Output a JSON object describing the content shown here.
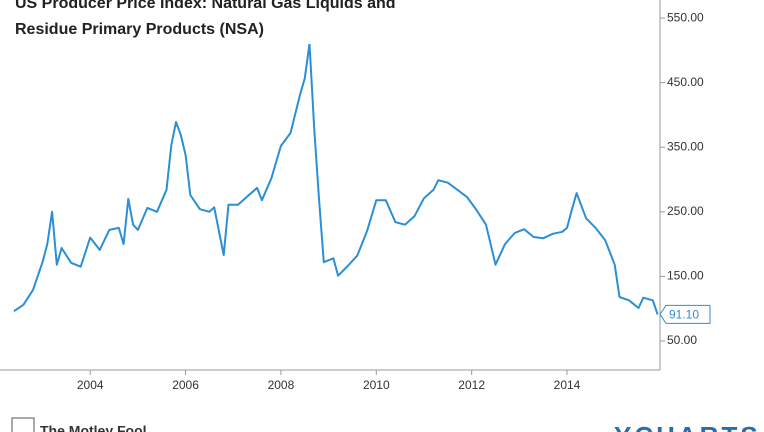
{
  "chart_data": {
    "type": "line",
    "title_lines": [
      "US Producer Price Index: Natural Gas Liquids and",
      "Residue Primary Products (NSA)"
    ],
    "x": [
      2002.4,
      2002.6,
      2002.8,
      2003.0,
      2003.1,
      2003.2,
      2003.3,
      2003.4,
      2003.6,
      2003.8,
      2004.0,
      2004.2,
      2004.4,
      2004.6,
      2004.7,
      2004.8,
      2004.9,
      2005.0,
      2005.2,
      2005.4,
      2005.6,
      2005.7,
      2005.8,
      2005.9,
      2006.0,
      2006.1,
      2006.3,
      2006.5,
      2006.6,
      2006.8,
      2006.9,
      2007.1,
      2007.3,
      2007.5,
      2007.6,
      2007.8,
      2008.0,
      2008.2,
      2008.4,
      2008.5,
      2008.6,
      2008.7,
      2008.8,
      2008.9,
      2009.1,
      2009.2,
      2009.4,
      2009.6,
      2009.8,
      2010.0,
      2010.2,
      2010.4,
      2010.6,
      2010.8,
      2011.0,
      2011.2,
      2011.3,
      2011.5,
      2011.7,
      2011.9,
      2012.1,
      2012.3,
      2012.5,
      2012.7,
      2012.9,
      2013.1,
      2013.3,
      2013.5,
      2013.7,
      2013.9,
      2014.0,
      2014.1,
      2014.2,
      2014.4,
      2014.6,
      2014.8,
      2015.0,
      2015.1,
      2015.3,
      2015.5,
      2015.6,
      2015.8,
      2015.9
    ],
    "series": [
      {
        "color": "#2b8fd6",
        "values": [
          96,
          106,
          129,
          172,
          200,
          250,
          168,
          194,
          171,
          165,
          210,
          191,
          222,
          225,
          200,
          270,
          230,
          222,
          256,
          250,
          284,
          353,
          389,
          369,
          338,
          276,
          254,
          250,
          257,
          183,
          261,
          261,
          274,
          287,
          268,
          302,
          352,
          372,
          431,
          457,
          510,
          377,
          268,
          172,
          178,
          151,
          166,
          182,
          219,
          268,
          268,
          234,
          230,
          243,
          271,
          284,
          299,
          295,
          284,
          273,
          253,
          230,
          168,
          200,
          217,
          223,
          211,
          209,
          216,
          219,
          225,
          253,
          279,
          240,
          225,
          206,
          168,
          118,
          113,
          101,
          117,
          113,
          91.1
        ]
      }
    ],
    "last_value_label": "91.10",
    "xlim": [
      2002.36,
      2015.95
    ],
    "xticks": [
      2004,
      2006,
      2008,
      2010,
      2012,
      2014
    ],
    "ylim": [
      5,
      578
    ],
    "yticks": [
      {
        "value": 50,
        "label": "50.00"
      },
      {
        "value": 150,
        "label": "150.00"
      },
      {
        "value": 250,
        "label": "250.00"
      },
      {
        "value": 350,
        "label": "350.00"
      },
      {
        "value": 450,
        "label": "450.00"
      },
      {
        "value": 550,
        "label": "550.00"
      }
    ],
    "grid": false,
    "footer_left": "The Motley Fool",
    "footer_right": "YCHARTS"
  }
}
